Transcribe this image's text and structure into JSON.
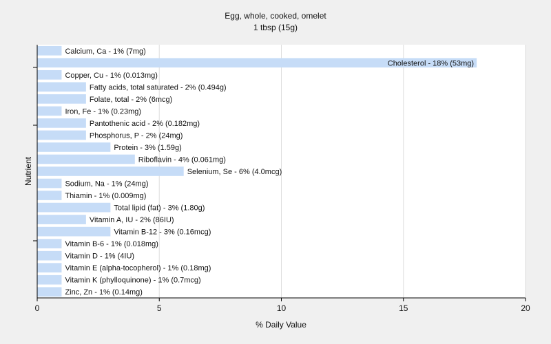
{
  "chart_data": {
    "type": "bar",
    "orientation": "horizontal",
    "title": "Egg, whole, cooked, omelet",
    "subtitle": "1 tbsp (15g)",
    "xlabel": "% Daily Value",
    "ylabel": "Nutrient",
    "xlim": [
      0,
      20
    ],
    "xticks": [
      0,
      5,
      10,
      15,
      20
    ],
    "grid": "vertical",
    "bar_color": "#c6dcf7",
    "background_color": "#f0f0f0",
    "plot_background_color": "#ffffff",
    "categories": [
      "Calcium, Ca",
      "Cholesterol",
      "Copper, Cu",
      "Fatty acids, total saturated",
      "Folate, total",
      "Iron, Fe",
      "Pantothenic acid",
      "Phosphorus, P",
      "Protein",
      "Riboflavin",
      "Selenium, Se",
      "Sodium, Na",
      "Thiamin",
      "Total lipid (fat)",
      "Vitamin A, IU",
      "Vitamin B-12",
      "Vitamin B-6",
      "Vitamin D",
      "Vitamin E (alpha-tocopherol)",
      "Vitamin K (phylloquinone)",
      "Zinc, Zn"
    ],
    "values": [
      1,
      18,
      1,
      2,
      2,
      1,
      2,
      2,
      3,
      4,
      6,
      1,
      1,
      3,
      2,
      3,
      1,
      1,
      1,
      1,
      1
    ],
    "labels": [
      "Calcium, Ca - 1% (7mg)",
      "Cholesterol - 18% (53mg)",
      "Copper, Cu - 1% (0.013mg)",
      "Fatty acids, total saturated - 2% (0.494g)",
      "Folate, total - 2% (6mcg)",
      "Iron, Fe - 1% (0.23mg)",
      "Pantothenic acid - 2% (0.182mg)",
      "Phosphorus, P - 2% (24mg)",
      "Protein - 3% (1.59g)",
      "Riboflavin - 4% (0.061mg)",
      "Selenium, Se - 6% (4.0mcg)",
      "Sodium, Na - 1% (24mg)",
      "Thiamin - 1% (0.009mg)",
      "Total lipid (fat) - 3% (1.80g)",
      "Vitamin A, IU - 2% (86IU)",
      "Vitamin B-12 - 3% (0.16mcg)",
      "Vitamin B-6 - 1% (0.018mg)",
      "Vitamin D - 1% (4IU)",
      "Vitamin E (alpha-tocopherol) - 1% (0.18mg)",
      "Vitamin K (phylloquinone) - 1% (0.7mcg)",
      "Zinc, Zn - 1% (0.14mg)"
    ]
  }
}
